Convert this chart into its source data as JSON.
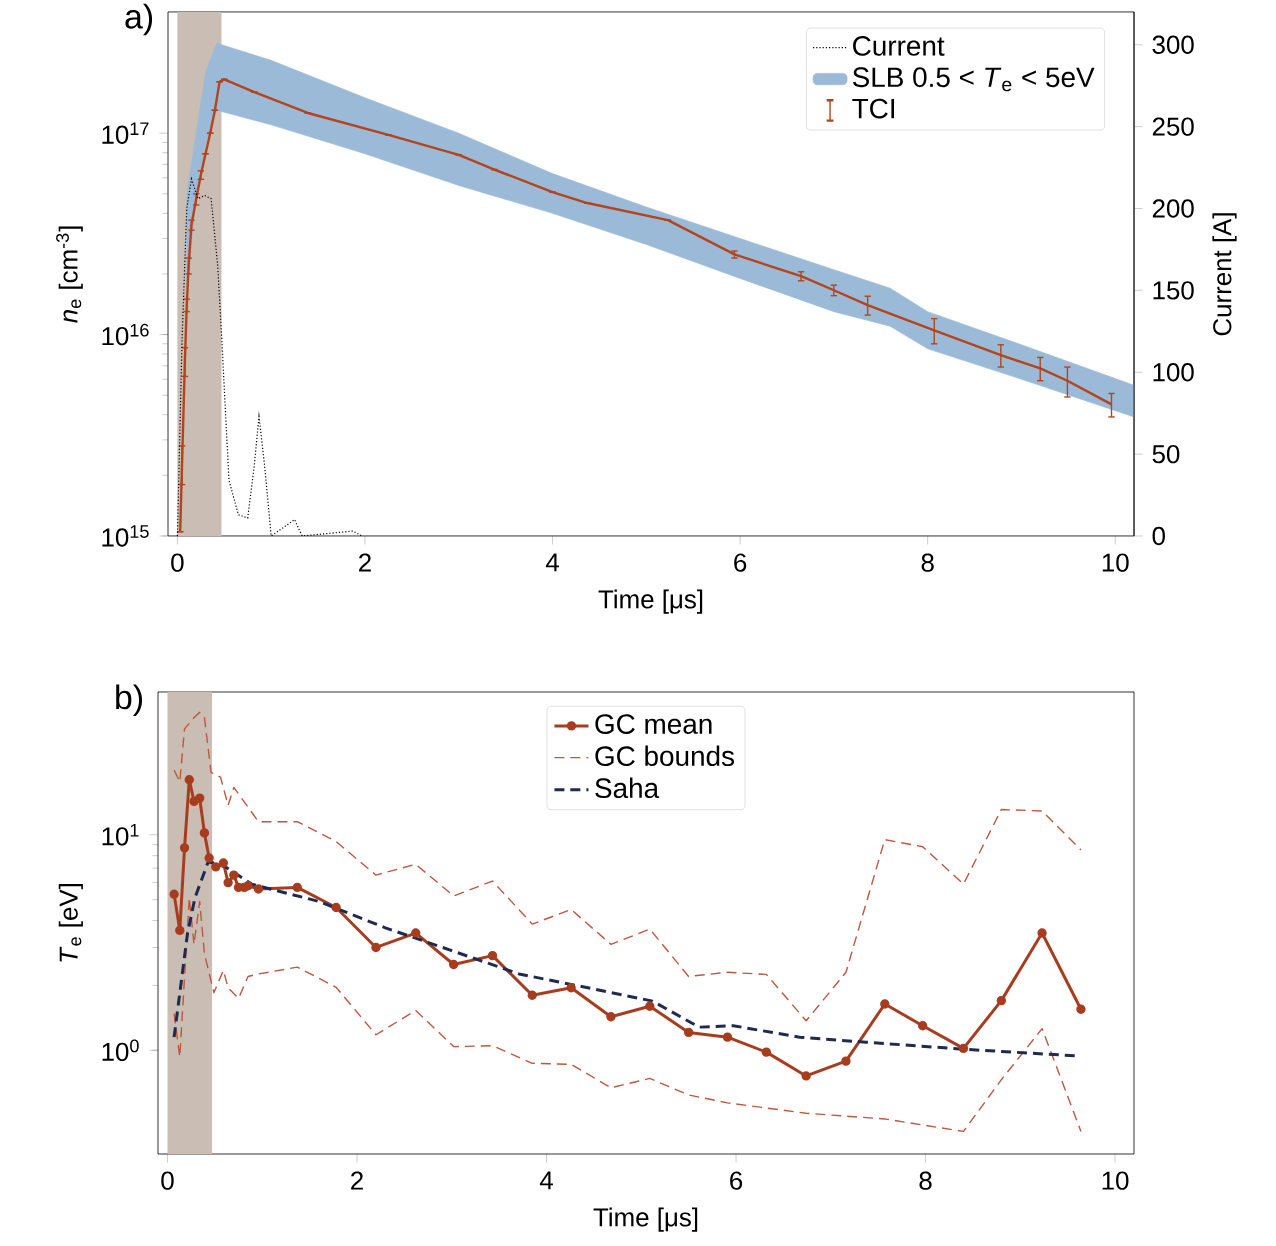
{
  "chart_data": [
    {
      "type": "line",
      "title": "a)",
      "xlabel": "Time [μs]",
      "ylabel": "*n*$_{e}$ [cm$^{-3}$]",
      "y2label": "Current [A]",
      "log": "y",
      "xlim": [
        -0.1,
        10.2
      ],
      "ylim": [
        1000000000000000.0,
        4e+17
      ],
      "y2lim": [
        0,
        320
      ],
      "xticks": [
        0,
        2,
        4,
        6,
        8,
        10
      ],
      "yticks": [
        {
          "value": 1000000000000000.0,
          "label": "10$^{15}$"
        },
        {
          "value": 1e+16,
          "label": "10$^{16}$"
        },
        {
          "value": 1e+17,
          "label": "10$^{17}$"
        }
      ],
      "y2ticks": [
        0,
        50,
        100,
        150,
        200,
        250,
        300
      ],
      "legend": "top right",
      "bands": [
        {
          "axis": "x",
          "from": 0,
          "to": 0.47,
          "color": "#c9bdb4"
        }
      ],
      "series": [
        {
          "name": "Current",
          "axis": "y2",
          "color": "#000000",
          "line_style": "dotted",
          "x": [
            0,
            0.05,
            0.1,
            0.15,
            0.22,
            0.29,
            0.36,
            0.43,
            0.47,
            0.55,
            0.65,
            0.75,
            0.82,
            0.87,
            0.93,
            1.0,
            1.25,
            1.33,
            1.87,
            1.97
          ],
          "values": [
            0,
            120,
            200,
            218,
            206,
            208,
            206,
            165,
            124,
            34,
            13,
            11,
            43,
            73,
            43,
            0,
            10,
            0,
            3,
            0
          ]
        },
        {
          "name": "SLB 0.5 < *T*$_{e}$ < 5eV",
          "type": "area",
          "color": "#9bbad7",
          "x": [
            0.1,
            0.2,
            0.3,
            0.42,
            1.0,
            2.0,
            3.0,
            4.0,
            5.0,
            6.0,
            7.0,
            7.6,
            8.0,
            9.0,
            10.2
          ],
          "values": [
            null,
            null,
            null,
            null,
            null,
            null,
            null,
            null,
            null,
            null,
            null,
            null,
            null,
            null,
            null
          ],
          "lower": [
            1.6e+16,
            5e+16,
            8.9e+16,
            1.3e+17,
            1.1e+17,
            7.9e+16,
            5.5e+16,
            4e+16,
            2.8e+16,
            1.9e+16,
            1.3e+16,
            1.1e+16,
            8500000000000000.0,
            6000000000000000.0,
            3900000000000000.0
          ],
          "upper": [
            5e+16,
            1e+17,
            2e+17,
            2.8e+17,
            2.3e+17,
            1.5e+17,
            1e+17,
            6.3e+16,
            4.3e+16,
            3e+16,
            2.1e+16,
            1.7e+16,
            1.3e+16,
            8900000000000000.0,
            5600000000000000.0
          ]
        },
        {
          "name": "TCI",
          "marker": "none",
          "color": "#b4441c",
          "x": [
            0.03,
            0.05,
            0.08,
            0.1,
            0.12,
            0.15,
            0.2,
            0.25,
            0.3,
            0.35,
            0.4,
            0.45,
            0.5,
            0.82,
            1.39,
            2.25,
            3.0,
            3.38,
            4.0,
            4.37,
            5.23,
            5.94,
            6.65,
            7.0,
            7.36,
            8.07,
            8.78,
            9.2,
            9.49,
            9.96
          ],
          "values": [
            1050000000000000.0,
            2300000000000000.0,
            7400000000000000.0,
            1.4e+16,
            2.2e+16,
            3.5e+16,
            4.7e+16,
            6.2e+16,
            7.9e+16,
            1e+17,
            1.3e+17,
            1.8e+17,
            1.85e+17,
            1.6e+17,
            1.26e+17,
            9.8e+16,
            7.8e+16,
            6.6e+16,
            5.1e+16,
            4.5e+16,
            3.7e+16,
            2.5e+16,
            1.95e+16,
            1.66e+16,
            1.4e+16,
            1.05e+16,
            7900000000000000.0,
            6800000000000000.0,
            5900000000000000.0,
            4500000000000000.0
          ],
          "errors": [
            null,
            500000000000000.0,
            1200000000000000.0,
            1000000000000000.0,
            2000000000000000.0,
            2000000000000000.0,
            3000000000000000.0,
            3000000000000000.0,
            null,
            null,
            null,
            null,
            null,
            null,
            null,
            null,
            null,
            null,
            null,
            null,
            null,
            1000000000000000.0,
            1000000000000000.0,
            1000000000000000.0,
            1500000000000000.0,
            1500000000000000.0,
            1000000000000000.0,
            900000000000000.0,
            1000000000000000.0,
            600000000000000.0
          ]
        }
      ]
    },
    {
      "type": "line",
      "title": "b)",
      "xlabel": "Time [μs]",
      "ylabel": "*T*$_{e}$ [eV]",
      "log": "y",
      "xlim": [
        -0.1,
        10.2
      ],
      "ylim": [
        0.33,
        46
      ],
      "xticks": [
        0,
        2,
        4,
        6,
        8,
        10
      ],
      "yticks": [
        {
          "value": 1,
          "label": "10$^{0}$"
        },
        {
          "value": 10,
          "label": "10$^{1}$"
        }
      ],
      "legend": "top",
      "bands": [
        {
          "axis": "x",
          "from": 0,
          "to": 0.47,
          "color": "#c9bdb4"
        }
      ],
      "series": [
        {
          "name": "GC mean",
          "marker": "circle",
          "line_style": "solid",
          "color": "#a83c1e",
          "x": [
            0.07,
            0.13,
            0.18,
            0.23,
            0.28,
            0.34,
            0.39,
            0.44,
            0.51,
            0.59,
            0.64,
            0.7,
            0.75,
            0.81,
            0.85,
            0.96,
            1.37,
            1.78,
            2.2,
            2.62,
            3.02,
            3.43,
            3.85,
            4.26,
            4.68,
            5.09,
            5.5,
            5.91,
            6.32,
            6.74,
            7.16,
            7.57,
            7.97,
            8.4,
            8.8,
            9.23,
            9.64
          ],
          "values": [
            5.3,
            3.6,
            8.7,
            18.0,
            14.3,
            14.8,
            10.2,
            7.8,
            7.1,
            7.4,
            6.0,
            6.5,
            5.7,
            5.7,
            5.8,
            5.6,
            5.7,
            4.6,
            3.0,
            3.5,
            2.5,
            2.75,
            1.8,
            1.95,
            1.43,
            1.6,
            1.21,
            1.15,
            0.98,
            0.76,
            0.89,
            1.64,
            1.3,
            1.02,
            1.7,
            3.5,
            1.55
          ]
        },
        {
          "name": "GC bounds",
          "marker": "none",
          "line_style": "dashed",
          "color": "#c0563c",
          "x": [
            0.07,
            0.13,
            0.18,
            0.28,
            0.34,
            0.39,
            0.46,
            0.56,
            0.64,
            0.7,
            0.96,
            1.37,
            1.78,
            2.2,
            2.62,
            3.02,
            3.43,
            3.85,
            4.26,
            4.68,
            5.09,
            5.5,
            5.91,
            6.32,
            6.74,
            7.16,
            7.57,
            7.97,
            8.4,
            8.8,
            9.23,
            9.64
          ],
          "values": [
            20,
            17.6,
            31,
            35,
            37,
            35,
            19.5,
            18.5,
            13.7,
            16.6,
            11.5,
            11.5,
            9.3,
            6.5,
            7.3,
            5.2,
            6.1,
            3.85,
            4.5,
            3.1,
            3.65,
            2.2,
            2.3,
            2.25,
            1.37,
            2.3,
            9.5,
            8.8,
            5.9,
            13.1,
            12.9,
            8.5
          ]
        },
        {
          "marker": "none",
          "line_style": "dashed",
          "color": "#c0563c",
          "x": [
            0.07,
            0.13,
            0.23,
            0.28,
            0.34,
            0.39,
            0.49,
            0.59,
            0.64,
            0.75,
            0.85,
            0.96,
            1.37,
            1.78,
            2.2,
            2.62,
            3.02,
            3.43,
            3.85,
            4.26,
            4.68,
            5.09,
            5.5,
            5.91,
            6.74,
            7.57,
            8.4,
            8.8,
            9.23,
            9.64
          ],
          "values": [
            1.48,
            0.93,
            5.1,
            3.1,
            4.9,
            2.8,
            1.85,
            2.35,
            1.95,
            1.74,
            2.2,
            2.26,
            2.43,
            1.96,
            1.18,
            1.53,
            1.04,
            1.05,
            0.87,
            0.86,
            0.67,
            0.74,
            0.62,
            0.57,
            0.51,
            0.48,
            0.42,
            0.73,
            1.26,
            0.42
          ]
        },
        {
          "name": "Saha",
          "marker": "none",
          "line_style": "dashed",
          "color": "#1f2a50",
          "x": [
            0.07,
            0.21,
            0.29,
            0.43,
            0.61,
            0.89,
            1.6,
            2.3,
            3.0,
            3.71,
            4.41,
            5.12,
            5.61,
            5.97,
            6.67,
            7.37,
            8.42,
            9.62
          ],
          "values": [
            1.15,
            3.45,
            5.1,
            7.5,
            7.1,
            5.9,
            4.9,
            3.7,
            2.9,
            2.26,
            1.96,
            1.69,
            1.28,
            1.3,
            1.15,
            1.09,
            1.01,
            0.94
          ]
        }
      ]
    }
  ]
}
